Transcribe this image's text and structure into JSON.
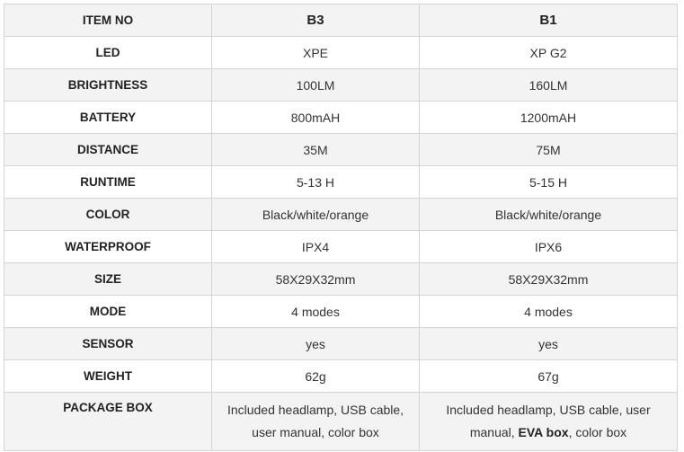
{
  "table": {
    "header": {
      "label": "ITEM NO",
      "col1": "B3",
      "col2": "B1"
    },
    "rows": [
      {
        "label": "LED",
        "col1": "XPE",
        "col2": "XP G2"
      },
      {
        "label": "BRIGHTNESS",
        "col1": "100LM",
        "col2": "160LM"
      },
      {
        "label": "BATTERY",
        "col1": "800mAH",
        "col2": "1200mAH"
      },
      {
        "label": "DISTANCE",
        "col1": "35M",
        "col2": "75M"
      },
      {
        "label": "RUNTIME",
        "col1": "5-13 H",
        "col2": "5-15 H"
      },
      {
        "label": "COLOR",
        "col1": "Black/white/orange",
        "col2": "Black/white/orange"
      },
      {
        "label": "WATERPROOF",
        "col1": "IPX4",
        "col2": "IPX6"
      },
      {
        "label": "SIZE",
        "col1": "58X29X32mm",
        "col2": "58X29X32mm"
      },
      {
        "label": "MODE",
        "col1": "4 modes",
        "col2": "4 modes"
      },
      {
        "label": "SENSOR",
        "col1": "yes",
        "col2": "yes"
      },
      {
        "label": "WEIGHT",
        "col1": "62g",
        "col2": "67g"
      }
    ],
    "package": {
      "label": "PACKAGE BOX",
      "col1": "Included headlamp, USB cable, user manual, color box",
      "col2_prefix": "Included headlamp, USB cable, user manual, ",
      "col2_bold": "EVA box",
      "col2_suffix": ", color box"
    }
  }
}
